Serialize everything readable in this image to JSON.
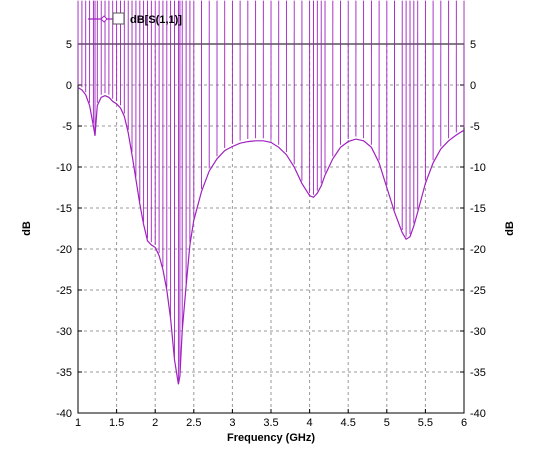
{
  "chart_data": {
    "type": "line",
    "title": "",
    "xlabel": "Frequency (GHz)",
    "ylabel": "dB",
    "ylabel_right": "dB",
    "xlim": [
      1,
      6
    ],
    "ylim": [
      -40,
      5
    ],
    "x_ticks": [
      1,
      1.5,
      2,
      2.5,
      3,
      3.5,
      4,
      4.5,
      5,
      5.5,
      6
    ],
    "x_tick_labels": [
      "1",
      "1.5",
      "2",
      "2.5",
      "3",
      "3.5",
      "4",
      "4.5",
      "5",
      "5.5",
      "6"
    ],
    "y_ticks": [
      5,
      0,
      -5,
      -10,
      -15,
      -20,
      -25,
      -30,
      -35,
      -40
    ],
    "y_tick_labels": [
      "5",
      "0",
      "-5",
      "-10",
      "-15",
      "-20",
      "-25",
      "-30",
      "-35",
      "-40"
    ],
    "grid": true,
    "legend": {
      "position": "top-left",
      "entries": [
        "dB[S(1,1)]"
      ]
    },
    "series": [
      {
        "name": "dB[S(1,1)]",
        "color": "#a020c0",
        "marker": "diamond-open",
        "x": [
          1.0,
          1.05,
          1.1,
          1.15,
          1.2,
          1.22,
          1.25,
          1.3,
          1.35,
          1.4,
          1.45,
          1.5,
          1.55,
          1.6,
          1.65,
          1.7,
          1.75,
          1.8,
          1.85,
          1.9,
          1.95,
          2.0,
          2.05,
          2.1,
          2.15,
          2.2,
          2.25,
          2.3,
          2.32,
          2.35,
          2.4,
          2.45,
          2.5,
          2.6,
          2.7,
          2.8,
          2.9,
          3.0,
          3.1,
          3.2,
          3.3,
          3.4,
          3.5,
          3.6,
          3.7,
          3.8,
          3.9,
          4.0,
          4.05,
          4.1,
          4.15,
          4.2,
          4.3,
          4.4,
          4.5,
          4.6,
          4.7,
          4.8,
          4.9,
          5.0,
          5.1,
          5.2,
          5.25,
          5.3,
          5.35,
          5.4,
          5.5,
          5.6,
          5.7,
          5.8,
          5.9,
          6.0
        ],
        "y": [
          -0.3,
          -0.6,
          -1.2,
          -2.5,
          -5.0,
          -6.2,
          -2.5,
          -1.5,
          -1.3,
          -1.5,
          -2.0,
          -2.3,
          -2.8,
          -3.8,
          -5.8,
          -8.5,
          -11.5,
          -14.5,
          -17.0,
          -19.0,
          -19.5,
          -19.8,
          -20.8,
          -22.5,
          -25.0,
          -28.5,
          -33.5,
          -36.5,
          -35.5,
          -30.0,
          -24.5,
          -19.5,
          -16.5,
          -13.0,
          -10.5,
          -9.0,
          -8.0,
          -7.5,
          -7.1,
          -6.9,
          -6.8,
          -6.8,
          -7.0,
          -7.6,
          -8.5,
          -10.0,
          -12.0,
          -13.5,
          -13.7,
          -13.2,
          -12.3,
          -11.0,
          -9.0,
          -7.6,
          -6.9,
          -6.6,
          -6.8,
          -7.6,
          -9.5,
          -12.5,
          -15.5,
          -18.0,
          -18.8,
          -18.5,
          -17.2,
          -15.5,
          -12.0,
          -9.5,
          -7.8,
          -6.8,
          -6.1,
          -5.5
        ]
      }
    ]
  }
}
